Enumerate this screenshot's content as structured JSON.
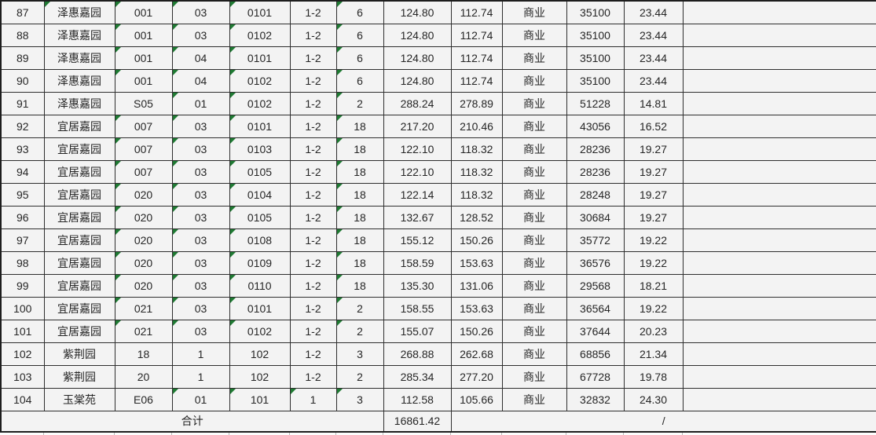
{
  "colors": {
    "indicator_green": "#1f7a33",
    "grid_line": "#2e2e2e",
    "cell_background": "#f3f3f3",
    "text": "#262626"
  },
  "table": {
    "rows": [
      {
        "cells": [
          "87",
          "泽惠嘉园",
          "001",
          "03",
          "0101",
          "1-2",
          "6",
          "124.80",
          "112.74",
          "商业",
          "35100",
          "23.44",
          ""
        ],
        "flags": [
          1,
          2,
          3,
          4,
          6
        ]
      },
      {
        "cells": [
          "88",
          "泽惠嘉园",
          "001",
          "03",
          "0102",
          "1-2",
          "6",
          "124.80",
          "112.74",
          "商业",
          "35100",
          "23.44",
          ""
        ],
        "flags": [
          2,
          3,
          4,
          6
        ]
      },
      {
        "cells": [
          "89",
          "泽惠嘉园",
          "001",
          "04",
          "0101",
          "1-2",
          "6",
          "124.80",
          "112.74",
          "商业",
          "35100",
          "23.44",
          ""
        ],
        "flags": [
          2,
          3,
          4,
          6
        ]
      },
      {
        "cells": [
          "90",
          "泽惠嘉园",
          "001",
          "04",
          "0102",
          "1-2",
          "6",
          "124.80",
          "112.74",
          "商业",
          "35100",
          "23.44",
          ""
        ],
        "flags": [
          2,
          3,
          4,
          6
        ]
      },
      {
        "cells": [
          "91",
          "泽惠嘉园",
          "S05",
          "01",
          "0102",
          "1-2",
          "2",
          "288.24",
          "278.89",
          "商业",
          "51228",
          "14.81",
          ""
        ],
        "flags": [
          3,
          4,
          6
        ]
      },
      {
        "cells": [
          "92",
          "宜居嘉园",
          "007",
          "03",
          "0101",
          "1-2",
          "18",
          "217.20",
          "210.46",
          "商业",
          "43056",
          "16.52",
          ""
        ],
        "flags": [
          2,
          3,
          4,
          6
        ]
      },
      {
        "cells": [
          "93",
          "宜居嘉园",
          "007",
          "03",
          "0103",
          "1-2",
          "18",
          "122.10",
          "118.32",
          "商业",
          "28236",
          "19.27",
          ""
        ],
        "flags": [
          2,
          3,
          4,
          6
        ]
      },
      {
        "cells": [
          "94",
          "宜居嘉园",
          "007",
          "03",
          "0105",
          "1-2",
          "18",
          "122.10",
          "118.32",
          "商业",
          "28236",
          "19.27",
          ""
        ],
        "flags": [
          2,
          3,
          4,
          6
        ]
      },
      {
        "cells": [
          "95",
          "宜居嘉园",
          "020",
          "03",
          "0104",
          "1-2",
          "18",
          "122.14",
          "118.32",
          "商业",
          "28248",
          "19.27",
          ""
        ],
        "flags": [
          2,
          3,
          4,
          6
        ]
      },
      {
        "cells": [
          "96",
          "宜居嘉园",
          "020",
          "03",
          "0105",
          "1-2",
          "18",
          "132.67",
          "128.52",
          "商业",
          "30684",
          "19.27",
          ""
        ],
        "flags": [
          2,
          3,
          4,
          6
        ]
      },
      {
        "cells": [
          "97",
          "宜居嘉园",
          "020",
          "03",
          "0108",
          "1-2",
          "18",
          "155.12",
          "150.26",
          "商业",
          "35772",
          "19.22",
          ""
        ],
        "flags": [
          2,
          3,
          4,
          6
        ]
      },
      {
        "cells": [
          "98",
          "宜居嘉园",
          "020",
          "03",
          "0109",
          "1-2",
          "18",
          "158.59",
          "153.63",
          "商业",
          "36576",
          "19.22",
          ""
        ],
        "flags": [
          2,
          3,
          4,
          6
        ]
      },
      {
        "cells": [
          "99",
          "宜居嘉园",
          "020",
          "03",
          "0110",
          "1-2",
          "18",
          "135.30",
          "131.06",
          "商业",
          "29568",
          "18.21",
          ""
        ],
        "flags": [
          2,
          3,
          4,
          6
        ]
      },
      {
        "cells": [
          "100",
          "宜居嘉园",
          "021",
          "03",
          "0101",
          "1-2",
          "2",
          "158.55",
          "153.63",
          "商业",
          "36564",
          "19.22",
          ""
        ],
        "flags": [
          2,
          3,
          4,
          6
        ]
      },
      {
        "cells": [
          "101",
          "宜居嘉园",
          "021",
          "03",
          "0102",
          "1-2",
          "2",
          "155.07",
          "150.26",
          "商业",
          "37644",
          "20.23",
          ""
        ],
        "flags": [
          2,
          3,
          4,
          6
        ]
      },
      {
        "cells": [
          "102",
          "紫荆园",
          "18",
          "1",
          "102",
          "1-2",
          "3",
          "268.88",
          "262.68",
          "商业",
          "68856",
          "21.34",
          ""
        ],
        "flags": []
      },
      {
        "cells": [
          "103",
          "紫荆园",
          "20",
          "1",
          "102",
          "1-2",
          "2",
          "285.34",
          "277.20",
          "商业",
          "67728",
          "19.78",
          ""
        ],
        "flags": []
      },
      {
        "cells": [
          "104",
          "玉棠苑",
          "E06",
          "01",
          "101",
          "1",
          "3",
          "112.58",
          "105.66",
          "商业",
          "32832",
          "24.30",
          ""
        ],
        "flags": [
          3,
          4,
          5,
          6
        ]
      }
    ],
    "total": {
      "label": "合计",
      "area_total": "16861.42",
      "rest": "/"
    }
  }
}
